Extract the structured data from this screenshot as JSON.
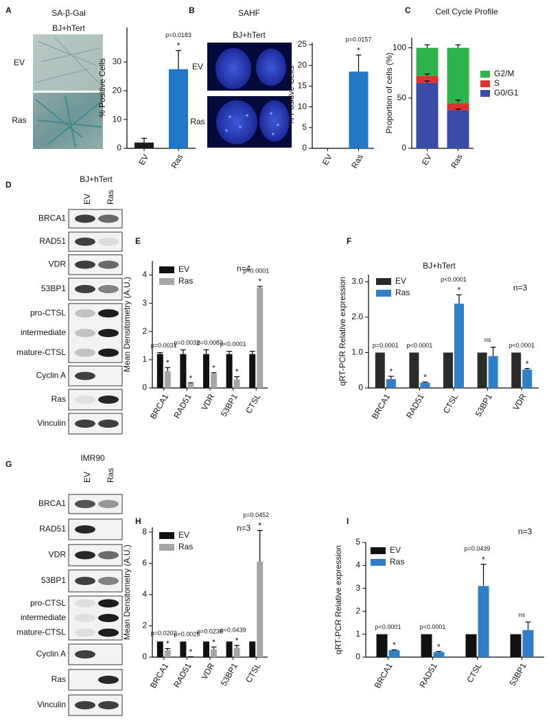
{
  "chart_data": [
    {
      "panel": "A",
      "type": "bar",
      "title": "SA-β-Gal",
      "image_panel": {
        "header": "BJ+hTert",
        "rows": [
          "EV",
          "Ras"
        ]
      },
      "y_label": "% Positive Cells",
      "categories": [
        "EV",
        "Ras"
      ],
      "values": [
        2,
        27.5
      ],
      "errors": [
        1.5,
        6.5
      ],
      "colors": [
        "#1a1a1a",
        "#1f78c8"
      ],
      "p_values": [
        null,
        "p=0.0183"
      ],
      "significance": [
        null,
        "*"
      ],
      "ylim": [
        0,
        42
      ],
      "yticks": [
        0,
        10,
        20,
        30
      ]
    },
    {
      "panel": "B",
      "type": "bar",
      "title": "SAHF",
      "image_panel": {
        "header": "BJ+hTert",
        "rows": [
          "EV",
          "Ras"
        ]
      },
      "y_label": "% Positive Cells",
      "categories": [
        "EV",
        "Ras"
      ],
      "values": [
        0,
        18.5
      ],
      "errors": [
        null,
        4
      ],
      "colors": [
        "#1a1a1a",
        "#1f78c8"
      ],
      "p_values": [
        null,
        "p=0.0157"
      ],
      "significance": [
        null,
        "*"
      ],
      "ylim": [
        0,
        25.5
      ],
      "yticks": [
        0,
        5,
        10,
        15,
        20,
        25
      ]
    },
    {
      "panel": "C",
      "type": "bar",
      "stacked": true,
      "title": "Cell Cycle Profile",
      "y_label": "Proportion of cells (%)",
      "categories": [
        "EV",
        "Ras"
      ],
      "series": [
        {
          "name": "G0/G1",
          "color": "#3b4ba8",
          "values": [
            65,
            38
          ],
          "errors": [
            2,
            1
          ]
        },
        {
          "name": "S",
          "color": "#e0312f",
          "values": [
            7,
            7
          ],
          "errors": [
            2,
            3
          ]
        },
        {
          "name": "G2/M",
          "color": "#2db34a",
          "values": [
            28,
            55
          ],
          "errors": [
            3,
            3
          ]
        }
      ],
      "ylim": [
        0,
        110
      ],
      "yticks": [
        0,
        50,
        100
      ],
      "legend": "right"
    },
    {
      "panel": "E",
      "type": "bar",
      "y_label": "Mean Densitometry (A.U.)",
      "note": "n=4",
      "categories": [
        "BRCA1",
        "RAD51",
        "VDR",
        "53BP1",
        "CTSL"
      ],
      "series": [
        {
          "name": "EV",
          "color": "#111111",
          "values": [
            1.2,
            1.2,
            1.2,
            1.2,
            1.2
          ],
          "errors": [
            0.05,
            0.15,
            0.15,
            0.1,
            0.1
          ]
        },
        {
          "name": "Ras",
          "color": "#a6a6a6",
          "values": [
            0.6,
            0.15,
            0.5,
            0.3,
            3.55
          ],
          "errors": [
            0.12,
            0.03,
            0.04,
            0.1,
            0.05
          ]
        }
      ],
      "p_values": [
        "p=0.0031",
        "p=0.0032",
        "p=0.0083",
        "p<0.0001",
        "p<0.0001"
      ],
      "significance": [
        "*",
        "*",
        "*",
        "*",
        "*"
      ],
      "ylim": [
        0,
        4.5
      ],
      "yticks": [
        0,
        1,
        2,
        3,
        4
      ],
      "legend": "upper left"
    },
    {
      "panel": "F",
      "type": "bar",
      "title": "BJ+hTert",
      "y_label": "qRT-PCR Relative expression",
      "note": "n=3",
      "categories": [
        "BRCA1",
        "RAD51",
        "CTSL",
        "53BP1",
        "VDR"
      ],
      "series": [
        {
          "name": "EV",
          "color": "#2b2b2b",
          "values": [
            1,
            1,
            1,
            1,
            1
          ]
        },
        {
          "name": "Ras",
          "color": "#2f7fc8",
          "values": [
            0.25,
            0.15,
            2.38,
            0.9,
            0.52
          ],
          "errors": [
            0.08,
            0.02,
            0.25,
            0.25,
            0.03
          ]
        }
      ],
      "p_values": [
        "p=0.0001",
        "p<0.0001",
        "p<0.0001",
        "ns",
        "p<0.0001"
      ],
      "significance": [
        "*",
        "*",
        "*",
        null,
        "*"
      ],
      "ylim": [
        0,
        3.2
      ],
      "yticks": [
        0,
        {
          "value": 1,
          "label": "1.0"
        },
        {
          "value": 2,
          "label": "2.0"
        },
        {
          "value": 3,
          "label": "3.0"
        }
      ],
      "legend": "upper left"
    },
    {
      "panel": "H",
      "type": "bar",
      "y_label": "Mean Densitometry (A.U.)",
      "note": "n=3",
      "categories": [
        "BRCA1",
        "RAD51",
        "VDR",
        "53BP1",
        "CTSL"
      ],
      "series": [
        {
          "name": "EV",
          "color": "#111111",
          "values": [
            1,
            1,
            1,
            1,
            1
          ]
        },
        {
          "name": "Ras",
          "color": "#a6a6a6",
          "values": [
            0.45,
            0.02,
            0.5,
            0.6,
            6.1
          ],
          "errors": [
            0.1,
            0.01,
            0.15,
            0.15,
            2
          ]
        }
      ],
      "p_values": [
        "p=0.0202",
        "p=0.0025",
        "p=0.0236",
        "p=0.0439",
        "p=0.0452"
      ],
      "significance": [
        "*",
        "*",
        "*",
        "*",
        "*"
      ],
      "ylim": [
        0,
        8.3
      ],
      "yticks": [
        0,
        2,
        4,
        6,
        8
      ],
      "legend": "upper left"
    },
    {
      "panel": "I",
      "type": "bar",
      "y_label": "qRT-PCR Relative expression",
      "note": "n=3",
      "categories": [
        "BRCA1",
        "RAD51",
        "CTSL",
        "53BP1"
      ],
      "series": [
        {
          "name": "EV",
          "color": "#111111",
          "values": [
            1,
            1,
            1,
            1
          ]
        },
        {
          "name": "Ras",
          "color": "#2f7fc8",
          "values": [
            0.3,
            0.22,
            3.1,
            1.18
          ],
          "errors": [
            0.02,
            0.03,
            0.95,
            0.35
          ]
        }
      ],
      "p_values": [
        "p<0.0001",
        "p<0.0001",
        "p=0.0439",
        "ns"
      ],
      "significance": [
        "*",
        "*",
        "*",
        null
      ],
      "ylim": [
        0,
        5
      ],
      "yticks": [
        0,
        1,
        2,
        3,
        4,
        5
      ],
      "legend": "upper left"
    }
  ],
  "blots": [
    {
      "panel": "D",
      "header": "BJ+hTert",
      "lanes": [
        "EV",
        "Ras"
      ],
      "rows": [
        [
          "BRCA1"
        ],
        [
          "RAD51"
        ],
        [
          "VDR"
        ],
        [
          "53BP1"
        ],
        [
          "pro-CTSL",
          "intermediate",
          "mature-CTSL"
        ],
        [
          "Cyclin A"
        ],
        [
          "Ras"
        ],
        [
          "Vinculin"
        ]
      ]
    },
    {
      "panel": "G",
      "header": "IMR90",
      "lanes": [
        "EV",
        "Ras"
      ],
      "rows": [
        [
          "BRCA1"
        ],
        [
          "RAD51"
        ],
        [
          "VDR"
        ],
        [
          "53BP1"
        ],
        [
          "pro-CTSL",
          "intermediate",
          "mature-CTSL"
        ],
        [
          "Cyclin A"
        ],
        [
          "Ras"
        ],
        [
          "Vinculin"
        ]
      ]
    }
  ]
}
